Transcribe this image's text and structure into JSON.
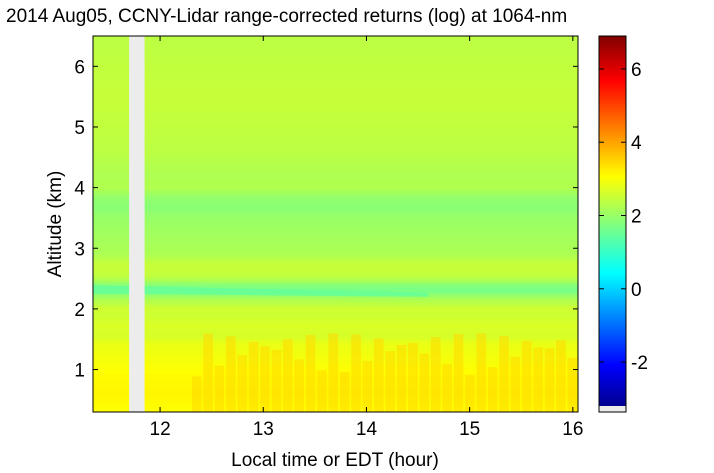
{
  "chart_data": {
    "type": "heatmap",
    "title": "2014 Aug05, CCNY-Lidar range-corrected returns (log) at 1064-nm",
    "xlabel": "Local time or EDT (hour)",
    "ylabel": "Altitude (km)",
    "xlim": [
      11.35,
      16.05
    ],
    "ylim": [
      0.3,
      6.5
    ],
    "x_ticks": [
      12,
      13,
      14,
      15,
      16
    ],
    "x_tick_labels": [
      "12",
      "13",
      "14",
      "15",
      "16"
    ],
    "y_ticks": [
      1,
      2,
      3,
      4,
      5,
      6
    ],
    "y_tick_labels": [
      "1",
      "2",
      "3",
      "4",
      "5",
      "6"
    ],
    "colorbar": {
      "min": -3.2,
      "max": 6.9,
      "ticks": [
        -2,
        0,
        2,
        4,
        6
      ],
      "tick_labels": [
        "-2",
        "0",
        "2",
        "4",
        "6"
      ],
      "colormap": "jet"
    },
    "data_gap": {
      "x_start": 11.7,
      "x_end": 11.85
    },
    "profile": {
      "altitude": [
        0.3,
        0.6,
        0.9,
        1.2,
        1.45,
        1.55,
        1.75,
        1.9,
        2.0,
        2.1,
        2.2,
        2.3,
        2.4,
        2.5,
        2.6,
        2.75,
        2.9,
        3.2,
        3.5,
        3.7,
        3.85,
        4.0,
        4.2,
        4.6,
        5.0,
        5.5,
        6.0,
        6.5
      ],
      "value": [
        3.1,
        3.2,
        3.15,
        3.0,
        2.9,
        2.7,
        2.75,
        2.6,
        2.65,
        2.45,
        2.2,
        1.75,
        1.9,
        2.4,
        2.55,
        2.55,
        2.3,
        2.2,
        2.1,
        1.95,
        2.05,
        2.35,
        2.3,
        2.45,
        2.5,
        2.55,
        2.5,
        2.45
      ]
    },
    "features": [
      {
        "name": "pbl-top-band",
        "x_start": 11.35,
        "x_end": 14.6,
        "alt_start": 2.32,
        "alt_end": 2.22,
        "value": 1.6
      },
      {
        "name": "pbl-warm-plumes",
        "x_start": 12.3,
        "x_end": 16.05,
        "alt_low": 0.3,
        "alt_high": 1.6,
        "value": 3.5
      }
    ]
  }
}
